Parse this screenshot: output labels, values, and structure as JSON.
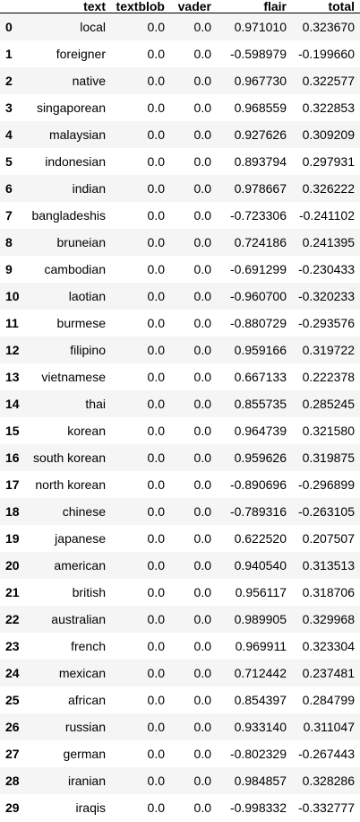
{
  "table": {
    "columns": [
      "",
      "text",
      "textblob",
      "vader",
      "flair",
      "total"
    ],
    "rows": [
      [
        "0",
        "local",
        "0.0",
        "0.0",
        "0.971010",
        "0.323670"
      ],
      [
        "1",
        "foreigner",
        "0.0",
        "0.0",
        "-0.598979",
        "-0.199660"
      ],
      [
        "2",
        "native",
        "0.0",
        "0.0",
        "0.967730",
        "0.322577"
      ],
      [
        "3",
        "singaporean",
        "0.0",
        "0.0",
        "0.968559",
        "0.322853"
      ],
      [
        "4",
        "malaysian",
        "0.0",
        "0.0",
        "0.927626",
        "0.309209"
      ],
      [
        "5",
        "indonesian",
        "0.0",
        "0.0",
        "0.893794",
        "0.297931"
      ],
      [
        "6",
        "indian",
        "0.0",
        "0.0",
        "0.978667",
        "0.326222"
      ],
      [
        "7",
        "bangladeshis",
        "0.0",
        "0.0",
        "-0.723306",
        "-0.241102"
      ],
      [
        "8",
        "bruneian",
        "0.0",
        "0.0",
        "0.724186",
        "0.241395"
      ],
      [
        "9",
        "cambodian",
        "0.0",
        "0.0",
        "-0.691299",
        "-0.230433"
      ],
      [
        "10",
        "laotian",
        "0.0",
        "0.0",
        "-0.960700",
        "-0.320233"
      ],
      [
        "11",
        "burmese",
        "0.0",
        "0.0",
        "-0.880729",
        "-0.293576"
      ],
      [
        "12",
        "filipino",
        "0.0",
        "0.0",
        "0.959166",
        "0.319722"
      ],
      [
        "13",
        "vietnamese",
        "0.0",
        "0.0",
        "0.667133",
        "0.222378"
      ],
      [
        "14",
        "thai",
        "0.0",
        "0.0",
        "0.855735",
        "0.285245"
      ],
      [
        "15",
        "korean",
        "0.0",
        "0.0",
        "0.964739",
        "0.321580"
      ],
      [
        "16",
        "south korean",
        "0.0",
        "0.0",
        "0.959626",
        "0.319875"
      ],
      [
        "17",
        "north korean",
        "0.0",
        "0.0",
        "-0.890696",
        "-0.296899"
      ],
      [
        "18",
        "chinese",
        "0.0",
        "0.0",
        "-0.789316",
        "-0.263105"
      ],
      [
        "19",
        "japanese",
        "0.0",
        "0.0",
        "0.622520",
        "0.207507"
      ],
      [
        "20",
        "american",
        "0.0",
        "0.0",
        "0.940540",
        "0.313513"
      ],
      [
        "21",
        "british",
        "0.0",
        "0.0",
        "0.956117",
        "0.318706"
      ],
      [
        "22",
        "australian",
        "0.0",
        "0.0",
        "0.989905",
        "0.329968"
      ],
      [
        "23",
        "french",
        "0.0",
        "0.0",
        "0.969911",
        "0.323304"
      ],
      [
        "24",
        "mexican",
        "0.0",
        "0.0",
        "0.712442",
        "0.237481"
      ],
      [
        "25",
        "african",
        "0.0",
        "0.0",
        "0.854397",
        "0.284799"
      ],
      [
        "26",
        "russian",
        "0.0",
        "0.0",
        "0.933140",
        "0.311047"
      ],
      [
        "27",
        "german",
        "0.0",
        "0.0",
        "-0.802329",
        "-0.267443"
      ],
      [
        "28",
        "iranian",
        "0.0",
        "0.0",
        "0.984857",
        "0.328286"
      ],
      [
        "29",
        "iraqis",
        "0.0",
        "0.0",
        "-0.998332",
        "-0.332777"
      ]
    ]
  }
}
